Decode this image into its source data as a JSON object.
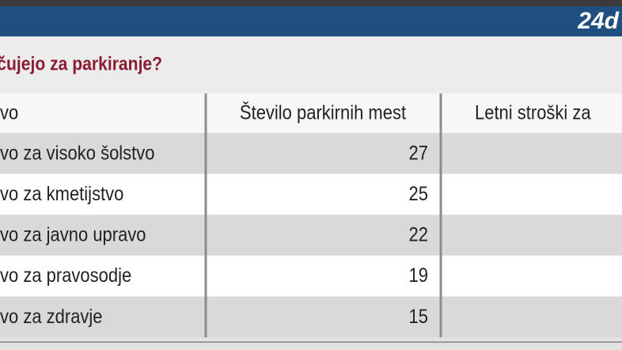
{
  "header": {
    "logo": "24d",
    "title": "čujejo za parkiranje?"
  },
  "table": {
    "columns": [
      "vo",
      "Število parkirnih mest",
      "Letni stroški za"
    ],
    "rows": [
      {
        "name": "vo za visoko šolstvo",
        "spaces": 27
      },
      {
        "name": "vo za kmetijstvo",
        "spaces": 25
      },
      {
        "name": "vo za javno upravo",
        "spaces": 22
      },
      {
        "name": "vo za pravosodje",
        "spaces": 19
      },
      {
        "name": "vo za zdravje",
        "spaces": 15
      }
    ]
  }
}
